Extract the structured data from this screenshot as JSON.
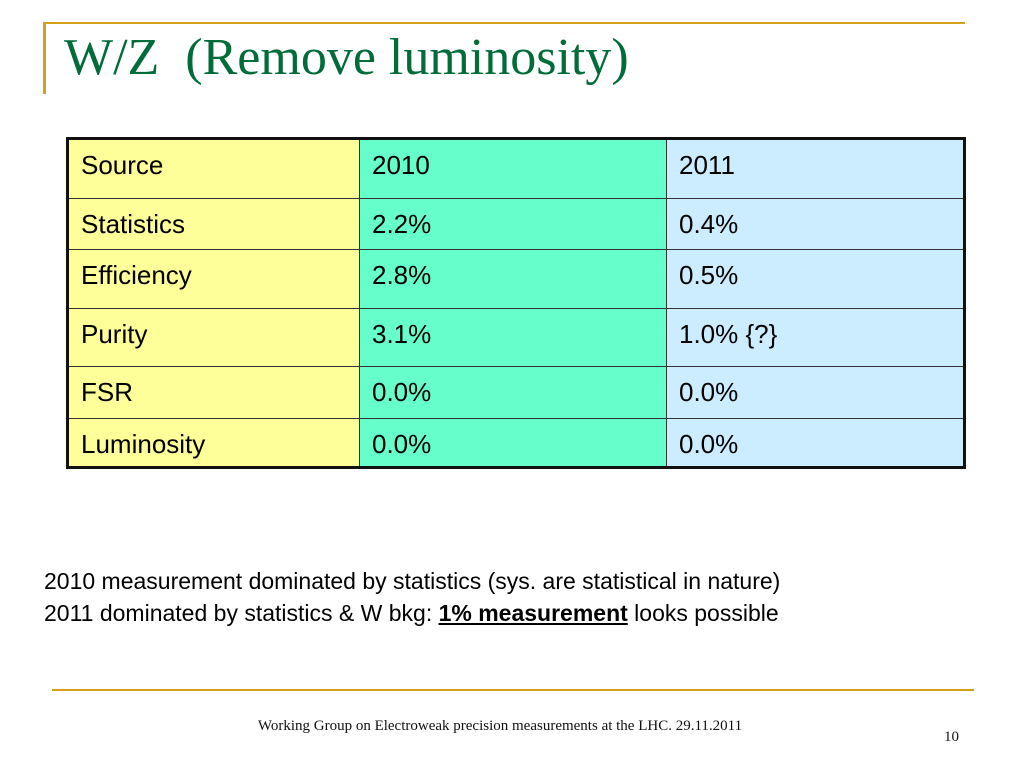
{
  "slide": {
    "title": "W/Z  (Remove luminosity)",
    "table": {
      "header": [
        "Source",
        "2010",
        "2011"
      ],
      "rows": [
        [
          "Statistics",
          "2.2%",
          "0.4%"
        ],
        [
          "Efficiency",
          "2.8%",
          "0.5%"
        ],
        [
          "Purity",
          "3.1%",
          "1.0% {?}"
        ],
        [
          "FSR",
          "0.0%",
          "0.0%"
        ],
        [
          "Luminosity",
          "0.0%",
          "0.0%"
        ]
      ]
    },
    "line1": "2010 measurement dominated by statistics (sys. are statistical in nature)",
    "line2_prefix": "2011 dominated by statistics & W bkg: ",
    "line2_emph": "1% measurement",
    "line2_suffix": " looks possible",
    "footer": "Working Group on Electroweak precision measurements at the LHC.  29.11.2011",
    "page_number": "10"
  },
  "colors": {
    "title": "#006c39",
    "accent": "#d4a017",
    "col_source": "#ffff99",
    "col_2010": "#66ffcc",
    "col_2011": "#ccecff"
  }
}
